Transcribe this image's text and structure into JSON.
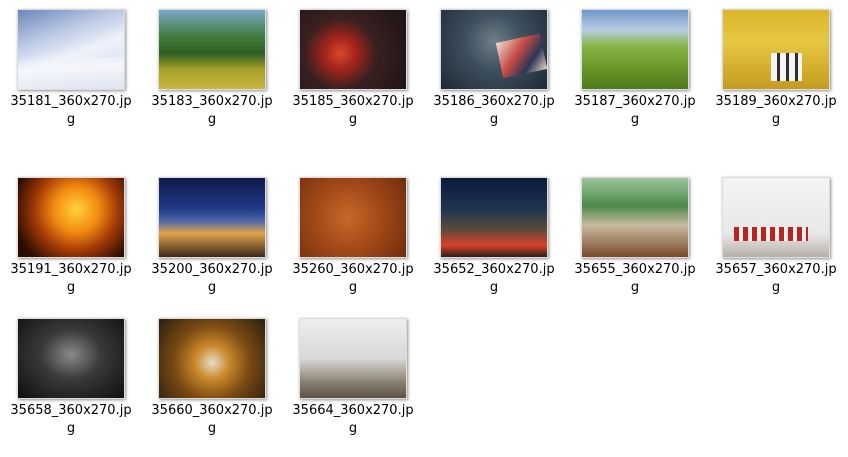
{
  "files": [
    {
      "name": "35181_360x270.jpg"
    },
    {
      "name": "35183_360x270.jpg"
    },
    {
      "name": "35185_360x270.jpg"
    },
    {
      "name": "35186_360x270.jpg"
    },
    {
      "name": "35187_360x270.jpg"
    },
    {
      "name": "35189_360x270.jpg"
    },
    {
      "name": "35191_360x270.jpg"
    },
    {
      "name": "35200_360x270.jpg"
    },
    {
      "name": "35260_360x270.jpg"
    },
    {
      "name": "35652_360x270.jpg"
    },
    {
      "name": "35655_360x270.jpg"
    },
    {
      "name": "35657_360x270.jpg"
    },
    {
      "name": "35658_360x270.jpg"
    },
    {
      "name": "35660_360x270.jpg"
    },
    {
      "name": "35664_360x270.jpg"
    }
  ]
}
